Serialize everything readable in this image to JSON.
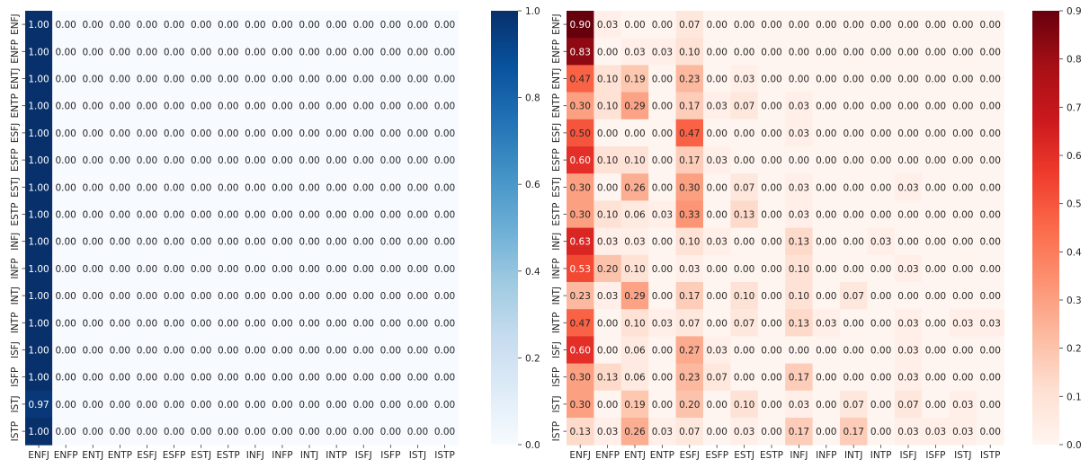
{
  "chart_data": [
    {
      "type": "heatmap",
      "title": "",
      "xlabel": "",
      "ylabel": "",
      "categories_x": [
        "ENFJ",
        "ENFP",
        "ENTJ",
        "ENTP",
        "ESFJ",
        "ESFP",
        "ESTJ",
        "ESTP",
        "INFJ",
        "INFP",
        "INTJ",
        "INTP",
        "ISFJ",
        "ISFP",
        "ISTJ",
        "ISTP"
      ],
      "categories_y": [
        "ENFJ",
        "ENFP",
        "ENTJ",
        "ENTP",
        "ESFJ",
        "ESFP",
        "ESTJ",
        "ESTP",
        "INFJ",
        "INFP",
        "INTJ",
        "INTP",
        "ISFJ",
        "ISFP",
        "ISTJ",
        "ISTP"
      ],
      "colormap": "Blues",
      "cmap_low": "#f7fbff",
      "cmap_high": "#08306b",
      "vmin": 0.0,
      "vmax": 1.0,
      "colorbar_ticks": [
        "0.0",
        "0.2",
        "0.4",
        "0.6",
        "0.8",
        "1.0"
      ],
      "values": [
        [
          1.0,
          0,
          0,
          0,
          0,
          0,
          0,
          0,
          0,
          0,
          0,
          0,
          0,
          0,
          0,
          0
        ],
        [
          1.0,
          0,
          0,
          0,
          0,
          0,
          0,
          0,
          0,
          0,
          0,
          0,
          0,
          0,
          0,
          0
        ],
        [
          1.0,
          0,
          0,
          0,
          0,
          0,
          0,
          0,
          0,
          0,
          0,
          0,
          0,
          0,
          0,
          0
        ],
        [
          1.0,
          0,
          0,
          0,
          0,
          0,
          0,
          0,
          0,
          0,
          0,
          0,
          0,
          0,
          0,
          0
        ],
        [
          1.0,
          0,
          0,
          0,
          0,
          0,
          0,
          0,
          0,
          0,
          0,
          0,
          0,
          0,
          0,
          0
        ],
        [
          1.0,
          0,
          0,
          0,
          0,
          0,
          0,
          0,
          0,
          0,
          0,
          0,
          0,
          0,
          0,
          0
        ],
        [
          1.0,
          0,
          0,
          0,
          0,
          0,
          0,
          0,
          0,
          0,
          0,
          0,
          0,
          0,
          0,
          0
        ],
        [
          1.0,
          0,
          0,
          0,
          0,
          0,
          0,
          0,
          0,
          0,
          0,
          0,
          0,
          0,
          0,
          0
        ],
        [
          1.0,
          0,
          0,
          0,
          0,
          0,
          0,
          0,
          0,
          0,
          0,
          0,
          0,
          0,
          0,
          0
        ],
        [
          1.0,
          0,
          0,
          0,
          0,
          0,
          0,
          0,
          0,
          0,
          0,
          0,
          0,
          0,
          0,
          0
        ],
        [
          1.0,
          0,
          0,
          0,
          0,
          0,
          0,
          0,
          0,
          0,
          0,
          0,
          0,
          0,
          0,
          0
        ],
        [
          1.0,
          0,
          0,
          0,
          0,
          0,
          0,
          0,
          0,
          0,
          0,
          0,
          0,
          0,
          0,
          0
        ],
        [
          1.0,
          0,
          0,
          0,
          0,
          0,
          0,
          0,
          0,
          0,
          0,
          0,
          0,
          0,
          0,
          0
        ],
        [
          1.0,
          0,
          0,
          0,
          0,
          0,
          0,
          0,
          0,
          0,
          0,
          0,
          0,
          0,
          0,
          0
        ],
        [
          0.97,
          0,
          0,
          0,
          0,
          0,
          0,
          0,
          0,
          0,
          0,
          0,
          0,
          0,
          0,
          0
        ],
        [
          1.0,
          0,
          0,
          0,
          0,
          0,
          0,
          0,
          0,
          0,
          0,
          0,
          0,
          0,
          0,
          0
        ]
      ]
    },
    {
      "type": "heatmap",
      "title": "",
      "xlabel": "",
      "ylabel": "",
      "categories_x": [
        "ENFJ",
        "ENFP",
        "ENTJ",
        "ENTP",
        "ESFJ",
        "ESFP",
        "ESTJ",
        "ESTP",
        "INFJ",
        "INFP",
        "INTJ",
        "INTP",
        "ISFJ",
        "ISFP",
        "ISTJ",
        "ISTP"
      ],
      "categories_y": [
        "ENFJ",
        "ENFP",
        "ENTJ",
        "ENTP",
        "ESFJ",
        "ESFP",
        "ESTJ",
        "ESTP",
        "INFJ",
        "INFP",
        "INTJ",
        "INTP",
        "ISFJ",
        "ISFP",
        "ISTJ",
        "ISTP"
      ],
      "colormap": "Reds",
      "cmap_low": "#fff5f0",
      "cmap_high": "#67000d",
      "vmin": 0.0,
      "vmax": 0.9,
      "colorbar_ticks": [
        "0.0",
        "0.1",
        "0.2",
        "0.3",
        "0.4",
        "0.5",
        "0.6",
        "0.7",
        "0.8",
        "0.9"
      ],
      "values": [
        [
          0.9,
          0.03,
          0.0,
          0.0,
          0.07,
          0.0,
          0.0,
          0.0,
          0.0,
          0.0,
          0.0,
          0.0,
          0.0,
          0.0,
          0.0,
          0.0
        ],
        [
          0.83,
          0.0,
          0.03,
          0.03,
          0.1,
          0.0,
          0.0,
          0.0,
          0.0,
          0.0,
          0.0,
          0.0,
          0.0,
          0.0,
          0.0,
          0.0
        ],
        [
          0.47,
          0.1,
          0.19,
          0.0,
          0.23,
          0.0,
          0.03,
          0.0,
          0.0,
          0.0,
          0.0,
          0.0,
          0.0,
          0.0,
          0.0,
          0.0
        ],
        [
          0.3,
          0.1,
          0.29,
          0.0,
          0.17,
          0.03,
          0.07,
          0.0,
          0.03,
          0.0,
          0.0,
          0.0,
          0.0,
          0.0,
          0.0,
          0.0
        ],
        [
          0.5,
          0.0,
          0.0,
          0.0,
          0.47,
          0.0,
          0.0,
          0.0,
          0.03,
          0.0,
          0.0,
          0.0,
          0.0,
          0.0,
          0.0,
          0.0
        ],
        [
          0.6,
          0.1,
          0.1,
          0.0,
          0.17,
          0.03,
          0.0,
          0.0,
          0.0,
          0.0,
          0.0,
          0.0,
          0.0,
          0.0,
          0.0,
          0.0
        ],
        [
          0.3,
          0.0,
          0.26,
          0.0,
          0.3,
          0.0,
          0.07,
          0.0,
          0.03,
          0.0,
          0.0,
          0.0,
          0.03,
          0.0,
          0.0,
          0.0
        ],
        [
          0.3,
          0.1,
          0.06,
          0.03,
          0.33,
          0.0,
          0.13,
          0.0,
          0.03,
          0.0,
          0.0,
          0.0,
          0.0,
          0.0,
          0.0,
          0.0
        ],
        [
          0.63,
          0.03,
          0.03,
          0.0,
          0.1,
          0.03,
          0.0,
          0.0,
          0.13,
          0.0,
          0.0,
          0.03,
          0.0,
          0.0,
          0.0,
          0.0
        ],
        [
          0.53,
          0.2,
          0.1,
          0.0,
          0.03,
          0.0,
          0.0,
          0.0,
          0.1,
          0.0,
          0.0,
          0.0,
          0.03,
          0.0,
          0.0,
          0.0
        ],
        [
          0.23,
          0.03,
          0.29,
          0.0,
          0.17,
          0.0,
          0.1,
          0.0,
          0.1,
          0.0,
          0.07,
          0.0,
          0.0,
          0.0,
          0.0,
          0.0
        ],
        [
          0.47,
          0.0,
          0.1,
          0.03,
          0.07,
          0.0,
          0.07,
          0.0,
          0.13,
          0.03,
          0.0,
          0.0,
          0.03,
          0.0,
          0.03,
          0.03
        ],
        [
          0.6,
          0.0,
          0.06,
          0.0,
          0.27,
          0.03,
          0.0,
          0.0,
          0.0,
          0.0,
          0.0,
          0.0,
          0.03,
          0.0,
          0.0,
          0.0
        ],
        [
          0.3,
          0.13,
          0.06,
          0.0,
          0.23,
          0.07,
          0.0,
          0.0,
          0.17,
          0.0,
          0.0,
          0.0,
          0.03,
          0.0,
          0.0,
          0.0
        ],
        [
          0.3,
          0.0,
          0.19,
          0.0,
          0.2,
          0.0,
          0.1,
          0.0,
          0.03,
          0.0,
          0.07,
          0.0,
          0.07,
          0.0,
          0.03,
          0.0
        ],
        [
          0.13,
          0.03,
          0.26,
          0.03,
          0.07,
          0.0,
          0.03,
          0.0,
          0.17,
          0.0,
          0.17,
          0.0,
          0.03,
          0.03,
          0.03,
          0.0
        ]
      ]
    }
  ]
}
